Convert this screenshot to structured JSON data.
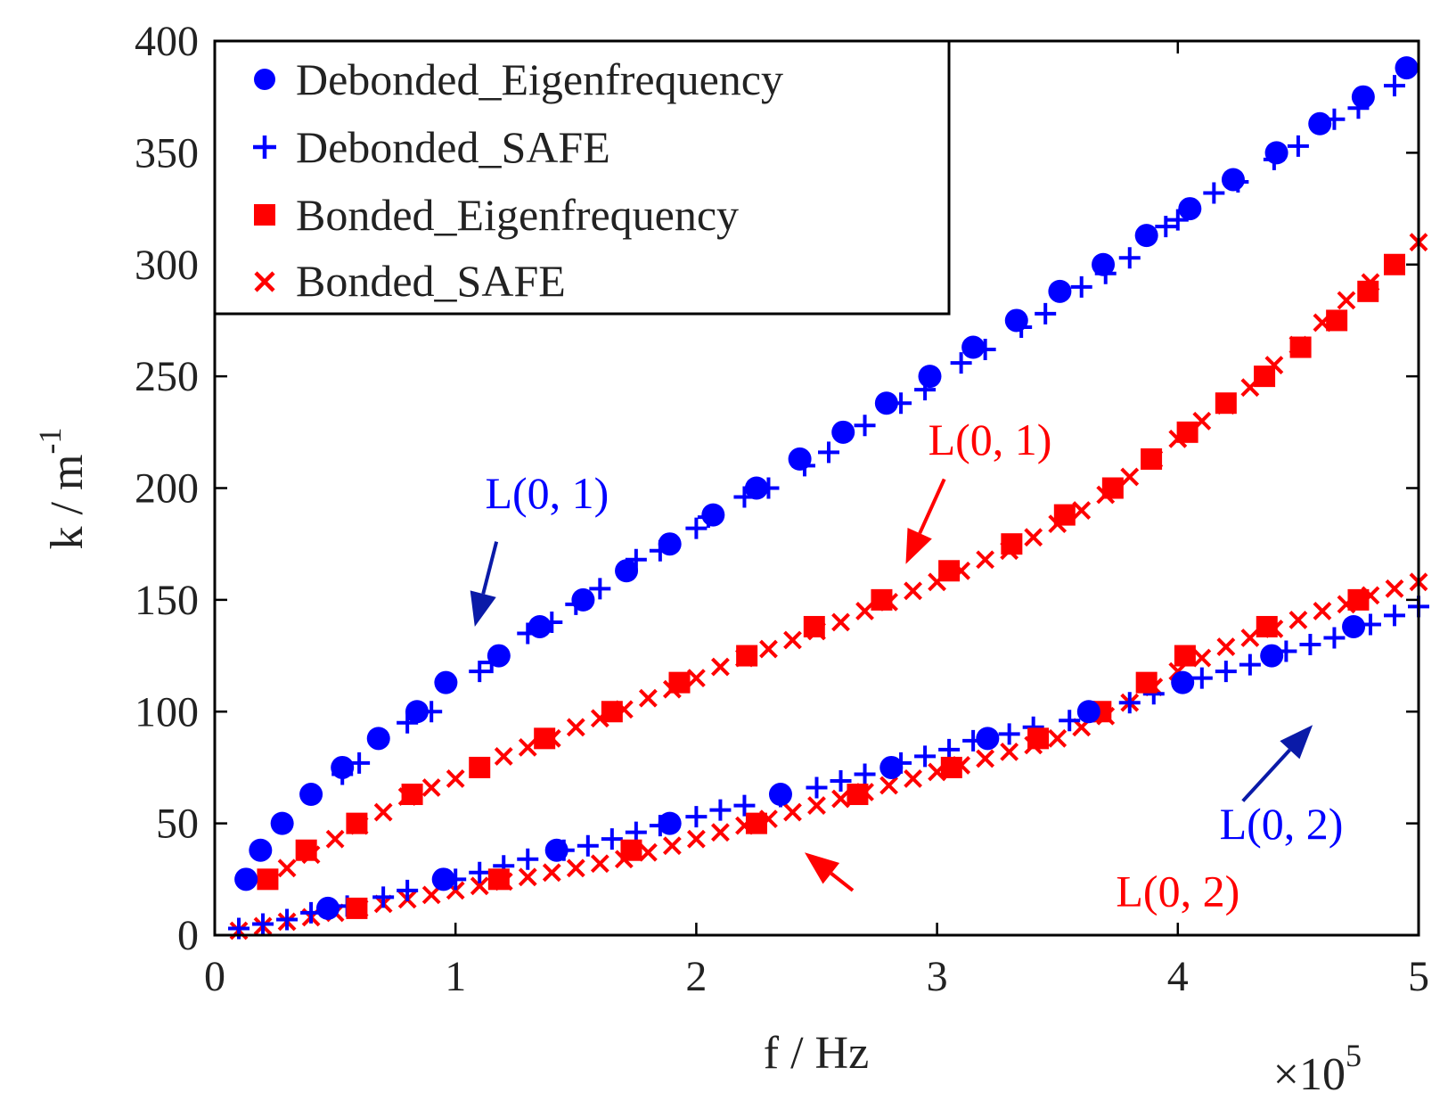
{
  "chart_data": {
    "type": "scatter",
    "xlabel": "f / Hz",
    "ylabel": "k / m",
    "ylabel_superscript": "-1",
    "x_multiplier": "×10",
    "x_multiplier_exponent": "5",
    "xlim": [
      0,
      5
    ],
    "ylim": [
      0,
      400
    ],
    "xticks": [
      0,
      1,
      2,
      3,
      4,
      5
    ],
    "yticks": [
      0,
      50,
      100,
      150,
      200,
      250,
      300,
      350,
      400
    ],
    "xtick_labels": [
      "0",
      "1",
      "2",
      "3",
      "4",
      "5"
    ],
    "ytick_labels": [
      "0",
      "50",
      "100",
      "150",
      "200",
      "250",
      "300",
      "350",
      "400"
    ],
    "grid": false,
    "legend_position": "top-left",
    "colors": {
      "debonded": "#0000ff",
      "bonded": "#ff0000",
      "debonded_arrow": "#0a1aa8",
      "bonded_arrow": "#ff0000"
    },
    "series": [
      {
        "name": "Debonded_Eigenfrequency",
        "marker": "circle",
        "color": "#0000ff",
        "x": [
          0.13,
          0.19,
          0.28,
          0.4,
          0.53,
          0.68,
          0.84,
          0.96,
          1.18,
          1.35,
          1.53,
          1.71,
          1.89,
          2.07,
          2.25,
          2.43,
          2.61,
          2.79,
          2.97,
          3.15,
          3.33,
          3.51,
          3.69,
          3.87,
          4.05,
          4.23,
          4.41,
          4.59,
          4.77,
          4.95,
          0.47,
          0.95,
          1.42,
          1.89,
          2.35,
          2.81,
          3.21,
          3.63,
          4.02,
          4.39,
          4.73
        ],
        "y": [
          25,
          38,
          50,
          63,
          75,
          88,
          100,
          113,
          125,
          138,
          150,
          163,
          175,
          188,
          200,
          213,
          225,
          238,
          250,
          263,
          275,
          288,
          300,
          313,
          325,
          338,
          350,
          363,
          375,
          388,
          12,
          25,
          38,
          50,
          63,
          75,
          88,
          100,
          113,
          125,
          138
        ]
      },
      {
        "name": "Debonded_SAFE",
        "marker": "plus",
        "color": "#0000ff",
        "x": [
          0.53,
          0.6,
          0.8,
          0.9,
          1.1,
          1.15,
          1.3,
          1.4,
          1.5,
          1.6,
          1.75,
          1.85,
          2.0,
          2.05,
          2.2,
          2.3,
          2.45,
          2.55,
          2.7,
          2.85,
          2.95,
          3.1,
          3.2,
          3.35,
          3.45,
          3.6,
          3.7,
          3.8,
          3.95,
          4.0,
          4.15,
          4.25,
          4.4,
          4.5,
          4.65,
          4.75,
          4.9,
          0.1,
          0.2,
          0.3,
          0.4,
          0.55,
          0.7,
          0.8,
          1.0,
          1.1,
          1.2,
          1.3,
          1.45,
          1.55,
          1.65,
          1.75,
          1.85,
          2.0,
          2.1,
          2.2,
          2.35,
          2.5,
          2.6,
          2.7,
          2.85,
          2.95,
          3.05,
          3.15,
          3.3,
          3.4,
          3.55,
          3.65,
          3.8,
          3.9,
          4.1,
          4.2,
          4.3,
          4.45,
          4.55,
          4.65,
          4.8,
          4.9,
          5.0
        ],
        "y": [
          72,
          77,
          95,
          100,
          118,
          122,
          135,
          140,
          148,
          155,
          168,
          172,
          182,
          187,
          196,
          200,
          210,
          216,
          228,
          238,
          244,
          256,
          262,
          272,
          278,
          290,
          296,
          303,
          317,
          320,
          332,
          337,
          347,
          353,
          365,
          370,
          380,
          3,
          5,
          7,
          10,
          13,
          17,
          20,
          25,
          28,
          31,
          34,
          38,
          40,
          43,
          46,
          49,
          53,
          56,
          58,
          62,
          66,
          69,
          72,
          77,
          80,
          83,
          87,
          90,
          93,
          96,
          100,
          104,
          108,
          115,
          118,
          121,
          127,
          130,
          133,
          139,
          143,
          147
        ]
      },
      {
        "name": "Bonded_Eigenfrequency",
        "marker": "square",
        "color": "#ff0000",
        "x": [
          0.22,
          0.38,
          0.59,
          0.82,
          1.1,
          1.37,
          1.65,
          1.93,
          2.21,
          2.49,
          2.77,
          3.05,
          3.31,
          3.53,
          3.73,
          3.89,
          4.04,
          4.2,
          4.36,
          4.51,
          4.66,
          4.79,
          4.9,
          0.59,
          1.18,
          1.73,
          2.25,
          2.67,
          3.06,
          3.42,
          3.68,
          3.87,
          4.03,
          4.37,
          4.75
        ],
        "y": [
          25,
          38,
          50,
          63,
          75,
          88,
          100,
          113,
          125,
          138,
          150,
          163,
          175,
          188,
          200,
          213,
          225,
          238,
          250,
          263,
          275,
          288,
          300,
          12,
          25,
          38,
          50,
          63,
          75,
          88,
          100,
          113,
          125,
          138,
          150
        ]
      },
      {
        "name": "Bonded_SAFE",
        "marker": "x",
        "color": "#ff0000",
        "x": [
          0.1,
          0.2,
          0.3,
          0.4,
          0.5,
          0.6,
          0.7,
          0.8,
          0.9,
          1.0,
          1.1,
          1.2,
          1.3,
          1.4,
          1.5,
          1.6,
          1.7,
          1.8,
          1.9,
          2.0,
          2.1,
          2.2,
          2.3,
          2.4,
          2.5,
          2.6,
          2.7,
          2.8,
          2.9,
          3.0,
          3.1,
          3.2,
          3.3,
          3.4,
          3.5,
          3.6,
          3.7,
          3.8,
          3.9,
          4.0,
          4.1,
          4.2,
          4.3,
          4.4,
          4.5,
          4.6,
          4.7,
          4.8,
          4.9,
          5.0,
          0.3,
          0.4,
          0.5,
          0.6,
          0.7,
          0.8,
          0.9,
          1.0,
          1.1,
          1.2,
          1.3,
          1.4,
          1.5,
          1.6,
          1.7,
          1.8,
          1.9,
          2.0,
          2.1,
          2.2,
          2.3,
          2.4,
          2.5,
          2.6,
          2.7,
          2.8,
          2.9,
          3.0,
          3.1,
          3.2,
          3.3,
          3.4,
          3.5,
          3.6,
          3.7,
          3.8,
          3.9,
          4.0,
          4.1,
          4.2,
          4.3,
          4.4,
          4.5,
          4.6,
          4.7,
          4.8,
          4.9,
          5.0
        ],
        "y": [
          2,
          4,
          6,
          8,
          10,
          12,
          14,
          16,
          18,
          20,
          22,
          24,
          26,
          28,
          30,
          32,
          34,
          37,
          40,
          43,
          46,
          49,
          52,
          55,
          58,
          61,
          64,
          67,
          70,
          73,
          76,
          79,
          82,
          85,
          88,
          93,
          98,
          104,
          111,
          118,
          124,
          129,
          133,
          137,
          141,
          145,
          148,
          152,
          155,
          158,
          30,
          36,
          43,
          49,
          55,
          62,
          66,
          70,
          75,
          80,
          84,
          88,
          93,
          97,
          101,
          106,
          110,
          115,
          120,
          124,
          128,
          132,
          136,
          140,
          145,
          149,
          154,
          158,
          163,
          168,
          172,
          178,
          184,
          190,
          197,
          205,
          213,
          222,
          230,
          237,
          245,
          255,
          264,
          274,
          284,
          292,
          300,
          310
        ]
      }
    ],
    "annotations": [
      {
        "text": "L(0, 1)",
        "color": "#0000ff",
        "arrow_color": "#0a1aa8",
        "text_x": 1.38,
        "text_y": 191,
        "arrow_from": [
          1.17,
          176
        ],
        "arrow_to": [
          1.08,
          138
        ]
      },
      {
        "text": "L(0, 1)",
        "color": "#ff0000",
        "arrow_color": "#ff0000",
        "text_x": 3.22,
        "text_y": 215,
        "arrow_from": [
          3.03,
          204
        ],
        "arrow_to": [
          2.87,
          166
        ]
      },
      {
        "text": "L(0, 2)",
        "color": "#0000ff",
        "arrow_color": "#0a1aa8",
        "text_x": 4.43,
        "text_y": 43,
        "arrow_from": [
          4.27,
          60
        ],
        "arrow_to": [
          4.56,
          94
        ]
      },
      {
        "text": "L(0, 2)",
        "color": "#ff0000",
        "arrow_color": "#ff0000",
        "text_x": 4.0,
        "text_y": 13,
        "arrow_from": [
          2.65,
          20
        ],
        "arrow_to": [
          2.45,
          37
        ]
      }
    ]
  }
}
